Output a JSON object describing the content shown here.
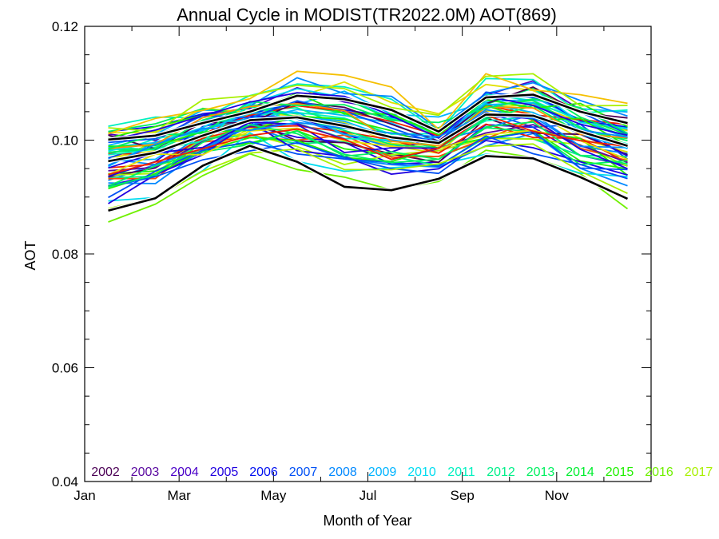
{
  "chart_data": {
    "type": "line",
    "title": "Annual Cycle in MODIST(TR2022.0M) AOT(869)",
    "xlabel": "Month of Year",
    "ylabel": "AOT",
    "xlim": [
      1,
      13
    ],
    "ylim": [
      0.04,
      0.12
    ],
    "x_tick_labels": [
      "Jan",
      "Mar",
      "May",
      "Jul",
      "Sep",
      "Nov"
    ],
    "y_tick_labels": [
      "0.04",
      "0.06",
      "0.08",
      "0.10",
      "0.12"
    ],
    "grid": false,
    "legend_placement": "bottom",
    "legend_entries": [
      {
        "label": "2002",
        "color": "#4b0055"
      },
      {
        "label": "2003",
        "color": "#5a0aa0"
      },
      {
        "label": "2004",
        "color": "#4a00c8"
      },
      {
        "label": "2005",
        "color": "#2000e0"
      },
      {
        "label": "2006",
        "color": "#0010f0"
      },
      {
        "label": "2007",
        "color": "#0050f5"
      },
      {
        "label": "2008",
        "color": "#0088ff"
      },
      {
        "label": "2009",
        "color": "#00b4ff"
      },
      {
        "label": "2010",
        "color": "#00dcf0"
      },
      {
        "label": "2011",
        "color": "#00f0c0"
      },
      {
        "label": "2012",
        "color": "#00f08a"
      },
      {
        "label": "2013",
        "color": "#00f060"
      },
      {
        "label": "2014",
        "color": "#00ee30"
      },
      {
        "label": "2015",
        "color": "#20f000"
      },
      {
        "label": "2016",
        "color": "#70f000"
      },
      {
        "label": "2017",
        "color": "#a8f000"
      }
    ],
    "x": [
      1.5,
      2.5,
      3.5,
      4.5,
      5.5,
      6.5,
      7.5,
      8.5,
      9.5,
      10.5,
      11.5,
      12.5
    ],
    "mean_series": [
      {
        "values": [
          0.0876,
          0.0898,
          0.0955,
          0.099,
          0.0962,
          0.0918,
          0.0912,
          0.0932,
          0.0972,
          0.0968,
          0.0935,
          0.0897
        ]
      },
      {
        "values": [
          0.0963,
          0.0978,
          0.1008,
          0.1035,
          0.104,
          0.1025,
          0.1005,
          0.0995,
          0.1045,
          0.1043,
          0.1015,
          0.099
        ]
      },
      {
        "values": [
          0.1001,
          0.1008,
          0.103,
          0.105,
          0.1078,
          0.1072,
          0.1053,
          0.1015,
          0.1075,
          0.108,
          0.105,
          0.103
        ]
      }
    ]
  }
}
